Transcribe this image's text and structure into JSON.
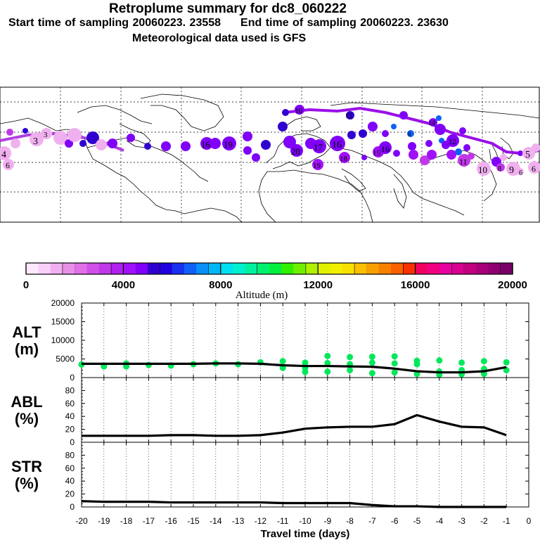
{
  "header": {
    "title": "Retroplume summary for dc8_060222",
    "subtitle_start": "Start time of sampling 20060223. 23558",
    "subtitle_end": "End time of sampling 20060223. 23630",
    "subtitle_met": "Meteorological data used is GFS"
  },
  "map": {
    "track_color": "#9a10e8",
    "ocean_color": "#ffffff",
    "land_outline_color": "#000000"
  },
  "colorbar": {
    "label": "Altitude (m)",
    "ticks": [
      "0",
      "4000",
      "8000",
      "12000",
      "16000",
      "20000"
    ],
    "colors": [
      "#ffe8ff",
      "#f8d0f8",
      "#f0b0f0",
      "#e890e8",
      "#e070e8",
      "#d050e8",
      "#c038e8",
      "#b020f0",
      "#a010f8",
      "#8000f8",
      "#3000d0",
      "#2000e0",
      "#1830f0",
      "#1060f8",
      "#0890f8",
      "#00b8f8",
      "#00e0f0",
      "#00f0d0",
      "#00f0a0",
      "#00f070",
      "#00f040",
      "#30f000",
      "#70f000",
      "#b0f000",
      "#e0f000",
      "#f0f000",
      "#f8e000",
      "#f8c000",
      "#f8a000",
      "#f88000",
      "#f86000",
      "#f83000",
      "#f00060",
      "#f00080",
      "#e800a0",
      "#d80090",
      "#c00080",
      "#a80078",
      "#900070",
      "#780068"
    ]
  },
  "x_axis": {
    "label": "Travel time (days)",
    "ticks": [
      "-20",
      "-19",
      "-18",
      "-17",
      "-16",
      "-15",
      "-14",
      "-13",
      "-12",
      "-11",
      "-10",
      "-9",
      "-8",
      "-7",
      "-6",
      "-5",
      "-4",
      "-3",
      "-2",
      "-1",
      "0"
    ]
  },
  "chart_data": [
    {
      "type": "line",
      "name": "ALT",
      "ylabel": "ALT (m)",
      "ylabel_top": "ALT",
      "ylabel_bottom": "(m)",
      "ylim": [
        0,
        20000
      ],
      "yticks": [
        "0",
        "5000",
        "10000",
        "15000",
        "20000"
      ],
      "x": [
        -20,
        -19,
        -18,
        -17,
        -16,
        -15,
        -14,
        -13,
        -12,
        -11,
        -10,
        -9,
        -8,
        -7,
        -6,
        -5,
        -4,
        -3,
        -2,
        -1
      ],
      "values": [
        3700,
        3700,
        3700,
        3700,
        3700,
        3700,
        3800,
        3800,
        3700,
        3300,
        3100,
        3100,
        3000,
        2900,
        2400,
        1700,
        1400,
        1400,
        1700,
        2800
      ],
      "scatter": {
        "color": "#00e85a",
        "points": [
          [
            -20,
            3500
          ],
          [
            -19,
            3000
          ],
          [
            -18,
            3000
          ],
          [
            -18,
            3800
          ],
          [
            -17,
            3400
          ],
          [
            -16,
            3200
          ],
          [
            -15,
            3600
          ],
          [
            -14,
            3800
          ],
          [
            -13,
            3600
          ],
          [
            -12,
            4100
          ],
          [
            -11,
            2600
          ],
          [
            -11,
            4400
          ],
          [
            -10,
            1500
          ],
          [
            -10,
            4000
          ],
          [
            -10,
            2600
          ],
          [
            -9,
            1600
          ],
          [
            -9,
            3900
          ],
          [
            -9,
            5800
          ],
          [
            -8,
            2000
          ],
          [
            -8,
            3600
          ],
          [
            -8,
            5500
          ],
          [
            -7,
            1200
          ],
          [
            -7,
            4000
          ],
          [
            -7,
            5600
          ],
          [
            -6,
            1400
          ],
          [
            -6,
            3800
          ],
          [
            -6,
            5700
          ],
          [
            -5,
            1000
          ],
          [
            -5,
            3600
          ],
          [
            -5,
            4500
          ],
          [
            -4,
            800
          ],
          [
            -4,
            1600
          ],
          [
            -4,
            4600
          ],
          [
            -3,
            900
          ],
          [
            -3,
            2000
          ],
          [
            -3,
            4000
          ],
          [
            -2,
            1000
          ],
          [
            -2,
            2300
          ],
          [
            -2,
            4400
          ],
          [
            -1,
            2000
          ],
          [
            -1,
            4100
          ]
        ]
      }
    },
    {
      "type": "line",
      "name": "ABL",
      "ylabel": "ABL (%)",
      "ylabel_top": "ABL",
      "ylabel_bottom": "(%)",
      "ylim": [
        0,
        100
      ],
      "yticks": [
        "0",
        "20",
        "40",
        "60",
        "80"
      ],
      "x": [
        -20,
        -19,
        -18,
        -17,
        -16,
        -15,
        -14,
        -13,
        -12,
        -11,
        -10,
        -9,
        -8,
        -7,
        -6,
        -5,
        -4,
        -3,
        -2,
        -1
      ],
      "values": [
        10,
        10,
        10,
        10,
        11,
        11,
        10,
        10,
        11,
        15,
        21,
        23,
        24,
        24,
        28,
        42,
        32,
        24,
        23,
        11
      ]
    },
    {
      "type": "line",
      "name": "STR",
      "ylabel": "STR (%)",
      "ylabel_top": "STR",
      "ylabel_bottom": "(%)",
      "ylim": [
        0,
        100
      ],
      "yticks": [
        "0",
        "20",
        "40",
        "60",
        "80"
      ],
      "x": [
        -20,
        -19,
        -18,
        -17,
        -16,
        -15,
        -14,
        -13,
        -12,
        -11,
        -10,
        -9,
        -8,
        -7,
        -6,
        -5,
        -4,
        -3,
        -2,
        -1
      ],
      "values": [
        9,
        8,
        8,
        8,
        7,
        7,
        7,
        7,
        7,
        6,
        6,
        6,
        6,
        3,
        1,
        1,
        0,
        0,
        0,
        0
      ]
    }
  ]
}
